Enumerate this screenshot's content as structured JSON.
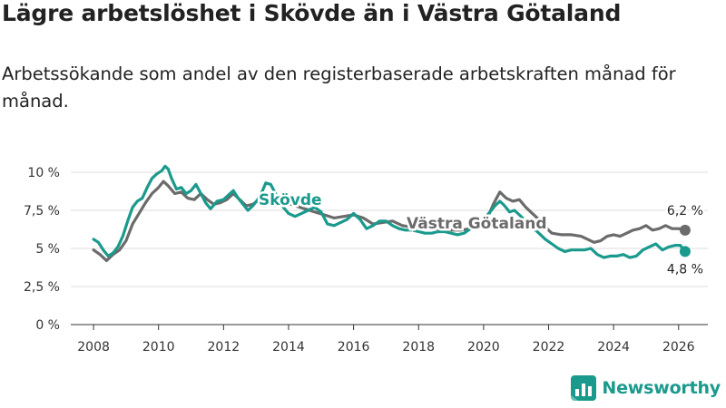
{
  "title": "Lägre arbetslöshet i Skövde än i Västra Götaland",
  "subtitle": "Arbetssökande som andel av den registerbaserade arbetskraften månad för månad.",
  "brand": {
    "name": "Newsworthy",
    "color": "#1a9a8d"
  },
  "chart_data": {
    "type": "line",
    "title": "Lägre arbetslöshet i Skövde än i Västra Götaland",
    "xlabel": "",
    "ylabel": "",
    "xlim": [
      2007.3,
      2026.9
    ],
    "ylim": [
      0,
      10
    ],
    "grid": true,
    "x_ticks": [
      2008,
      2010,
      2012,
      2014,
      2016,
      2018,
      2020,
      2022,
      2024,
      2026
    ],
    "x_tick_labels": [
      "2008",
      "2010",
      "2012",
      "2014",
      "2016",
      "2018",
      "2020",
      "2022",
      "2024",
      "2026"
    ],
    "y_ticks": [
      0,
      2.5,
      5,
      7.5,
      10
    ],
    "y_tick_labels": [
      "0 %",
      "2,5 %",
      "5 %",
      "7,5 %",
      "10 %"
    ],
    "series": [
      {
        "name": "Västra Götaland",
        "color": "#6b6b6b",
        "label": "Västra Götaland",
        "end_label": "6,2 %",
        "end_value": 6.2,
        "points": [
          [
            2008.0,
            4.9
          ],
          [
            2008.2,
            4.6
          ],
          [
            2008.4,
            4.2
          ],
          [
            2008.6,
            4.6
          ],
          [
            2008.8,
            4.9
          ],
          [
            2009.0,
            5.5
          ],
          [
            2009.2,
            6.6
          ],
          [
            2009.4,
            7.3
          ],
          [
            2009.6,
            8.0
          ],
          [
            2009.8,
            8.6
          ],
          [
            2010.0,
            9.0
          ],
          [
            2010.15,
            9.4
          ],
          [
            2010.3,
            9.1
          ],
          [
            2010.5,
            8.6
          ],
          [
            2010.7,
            8.7
          ],
          [
            2010.9,
            8.3
          ],
          [
            2011.1,
            8.2
          ],
          [
            2011.3,
            8.6
          ],
          [
            2011.5,
            8.2
          ],
          [
            2011.7,
            7.9
          ],
          [
            2011.9,
            8.0
          ],
          [
            2012.1,
            8.2
          ],
          [
            2012.3,
            8.6
          ],
          [
            2012.5,
            8.2
          ],
          [
            2012.7,
            7.8
          ],
          [
            2012.9,
            7.9
          ],
          [
            2013.1,
            8.2
          ],
          [
            2013.3,
            8.4
          ],
          [
            2013.6,
            8.2
          ],
          [
            2013.9,
            8.0
          ],
          [
            2014.2,
            7.8
          ],
          [
            2014.5,
            7.6
          ],
          [
            2014.8,
            7.4
          ],
          [
            2015.1,
            7.2
          ],
          [
            2015.4,
            7.0
          ],
          [
            2015.7,
            7.1
          ],
          [
            2016.0,
            7.2
          ],
          [
            2016.3,
            7.0
          ],
          [
            2016.6,
            6.6
          ],
          [
            2016.9,
            6.7
          ],
          [
            2017.2,
            6.8
          ],
          [
            2017.5,
            6.5
          ],
          [
            2017.8,
            6.4
          ],
          [
            2018.1,
            6.4
          ],
          [
            2018.4,
            6.3
          ],
          [
            2018.7,
            6.3
          ],
          [
            2019.0,
            6.2
          ],
          [
            2019.3,
            6.2
          ],
          [
            2019.6,
            6.3
          ],
          [
            2019.9,
            6.4
          ],
          [
            2020.1,
            6.9
          ],
          [
            2020.3,
            7.9
          ],
          [
            2020.5,
            8.7
          ],
          [
            2020.7,
            8.3
          ],
          [
            2020.9,
            8.1
          ],
          [
            2021.1,
            8.2
          ],
          [
            2021.3,
            7.7
          ],
          [
            2021.5,
            7.3
          ],
          [
            2021.7,
            6.9
          ],
          [
            2021.9,
            6.4
          ],
          [
            2022.1,
            6.0
          ],
          [
            2022.4,
            5.9
          ],
          [
            2022.7,
            5.9
          ],
          [
            2023.0,
            5.8
          ],
          [
            2023.2,
            5.6
          ],
          [
            2023.4,
            5.4
          ],
          [
            2023.6,
            5.5
          ],
          [
            2023.8,
            5.8
          ],
          [
            2024.0,
            5.9
          ],
          [
            2024.2,
            5.8
          ],
          [
            2024.4,
            6.0
          ],
          [
            2024.6,
            6.2
          ],
          [
            2024.8,
            6.3
          ],
          [
            2025.0,
            6.5
          ],
          [
            2025.2,
            6.2
          ],
          [
            2025.4,
            6.3
          ],
          [
            2025.6,
            6.5
          ],
          [
            2025.8,
            6.3
          ],
          [
            2026.0,
            6.3
          ],
          [
            2026.2,
            6.2
          ]
        ]
      },
      {
        "name": "Skövde",
        "color": "#1a9a8d",
        "label": "Skövde",
        "end_label": "4,8 %",
        "end_value": 4.8,
        "points": [
          [
            2008.0,
            5.6
          ],
          [
            2008.15,
            5.4
          ],
          [
            2008.3,
            4.9
          ],
          [
            2008.45,
            4.5
          ],
          [
            2008.6,
            4.7
          ],
          [
            2008.75,
            5.1
          ],
          [
            2008.9,
            5.8
          ],
          [
            2009.05,
            6.8
          ],
          [
            2009.2,
            7.7
          ],
          [
            2009.35,
            8.1
          ],
          [
            2009.5,
            8.3
          ],
          [
            2009.65,
            9.0
          ],
          [
            2009.8,
            9.6
          ],
          [
            2009.95,
            9.9
          ],
          [
            2010.1,
            10.1
          ],
          [
            2010.2,
            10.4
          ],
          [
            2010.3,
            10.2
          ],
          [
            2010.4,
            9.6
          ],
          [
            2010.55,
            8.9
          ],
          [
            2010.7,
            9.0
          ],
          [
            2010.85,
            8.6
          ],
          [
            2011.0,
            8.8
          ],
          [
            2011.15,
            9.2
          ],
          [
            2011.3,
            8.6
          ],
          [
            2011.45,
            8.0
          ],
          [
            2011.6,
            7.6
          ],
          [
            2011.8,
            8.1
          ],
          [
            2012.0,
            8.2
          ],
          [
            2012.15,
            8.5
          ],
          [
            2012.3,
            8.8
          ],
          [
            2012.45,
            8.3
          ],
          [
            2012.6,
            7.9
          ],
          [
            2012.75,
            7.5
          ],
          [
            2012.9,
            7.8
          ],
          [
            2013.05,
            8.2
          ],
          [
            2013.2,
            8.8
          ],
          [
            2013.3,
            9.3
          ],
          [
            2013.45,
            9.2
          ],
          [
            2013.6,
            8.6
          ],
          [
            2013.8,
            7.8
          ],
          [
            2014.0,
            7.3
          ],
          [
            2014.2,
            7.1
          ],
          [
            2014.4,
            7.3
          ],
          [
            2014.6,
            7.5
          ],
          [
            2014.8,
            7.7
          ],
          [
            2015.0,
            7.4
          ],
          [
            2015.2,
            6.6
          ],
          [
            2015.4,
            6.5
          ],
          [
            2015.6,
            6.7
          ],
          [
            2015.8,
            6.9
          ],
          [
            2016.0,
            7.3
          ],
          [
            2016.2,
            6.9
          ],
          [
            2016.4,
            6.3
          ],
          [
            2016.6,
            6.5
          ],
          [
            2016.8,
            6.8
          ],
          [
            2017.0,
            6.8
          ],
          [
            2017.2,
            6.5
          ],
          [
            2017.4,
            6.3
          ],
          [
            2017.6,
            6.2
          ],
          [
            2017.8,
            6.2
          ],
          [
            2018.0,
            6.1
          ],
          [
            2018.2,
            6.0
          ],
          [
            2018.4,
            6.0
          ],
          [
            2018.6,
            6.1
          ],
          [
            2018.8,
            6.1
          ],
          [
            2019.0,
            6.0
          ],
          [
            2019.2,
            5.9
          ],
          [
            2019.4,
            6.0
          ],
          [
            2019.6,
            6.3
          ],
          [
            2019.8,
            6.5
          ],
          [
            2020.0,
            6.9
          ],
          [
            2020.2,
            7.4
          ],
          [
            2020.35,
            7.8
          ],
          [
            2020.5,
            8.1
          ],
          [
            2020.65,
            7.8
          ],
          [
            2020.8,
            7.4
          ],
          [
            2020.95,
            7.5
          ],
          [
            2021.1,
            7.2
          ],
          [
            2021.3,
            6.8
          ],
          [
            2021.5,
            6.4
          ],
          [
            2021.7,
            6.0
          ],
          [
            2021.9,
            5.6
          ],
          [
            2022.1,
            5.3
          ],
          [
            2022.3,
            5.0
          ],
          [
            2022.5,
            4.8
          ],
          [
            2022.7,
            4.9
          ],
          [
            2022.9,
            4.9
          ],
          [
            2023.1,
            4.9
          ],
          [
            2023.3,
            5.0
          ],
          [
            2023.5,
            4.6
          ],
          [
            2023.7,
            4.4
          ],
          [
            2023.9,
            4.5
          ],
          [
            2024.1,
            4.5
          ],
          [
            2024.3,
            4.6
          ],
          [
            2024.5,
            4.4
          ],
          [
            2024.7,
            4.5
          ],
          [
            2024.9,
            4.9
          ],
          [
            2025.1,
            5.1
          ],
          [
            2025.3,
            5.3
          ],
          [
            2025.5,
            4.9
          ],
          [
            2025.7,
            5.1
          ],
          [
            2025.9,
            5.2
          ],
          [
            2026.05,
            5.2
          ],
          [
            2026.2,
            4.8
          ]
        ]
      }
    ]
  }
}
